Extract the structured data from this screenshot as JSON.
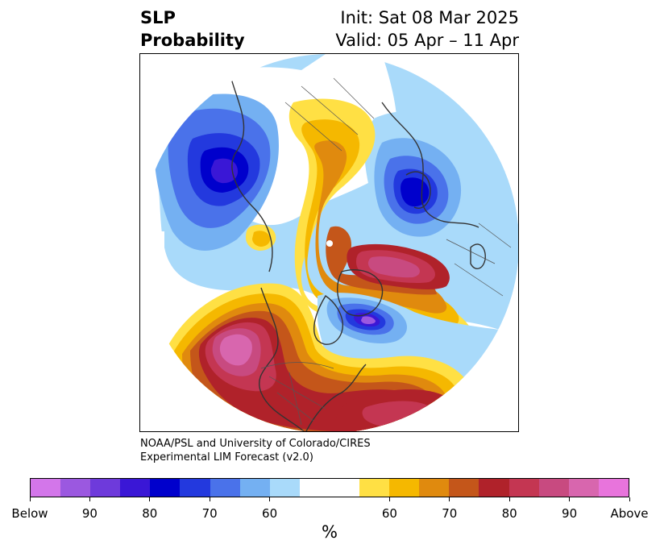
{
  "title": {
    "left_line1": "SLP",
    "left_line2": "Probability",
    "right_line1": "Init: Sat 08 Mar 2025",
    "right_line2": "Valid: 05 Apr – 11 Apr"
  },
  "credit": {
    "line1": "NOAA/PSL and University of Colorado/CIRES",
    "line2": "Experimental LIM Forecast (v2.0)"
  },
  "colorbar": {
    "colors_below": [
      "#d376ea",
      "#9b58e0",
      "#6e3adb",
      "#3a17d6",
      "#0000cc",
      "#2339de",
      "#4a72ea",
      "#74b0f2",
      "#a9dafa"
    ],
    "color_neutral": "#ffffff",
    "colors_above": [
      "#ffe044",
      "#f5b800",
      "#e08a0e",
      "#c4561a",
      "#b0222a",
      "#c43652",
      "#c84a80",
      "#d866ae",
      "#e874dc"
    ],
    "tick_labels": [
      "Below",
      "90",
      "80",
      "70",
      "60",
      "60",
      "70",
      "80",
      "90",
      "Above"
    ],
    "unit": "%"
  },
  "map": {
    "projection": "polar stereographic (North Pole)",
    "colors": {
      "coast": "#333333",
      "border": "#555555"
    }
  }
}
